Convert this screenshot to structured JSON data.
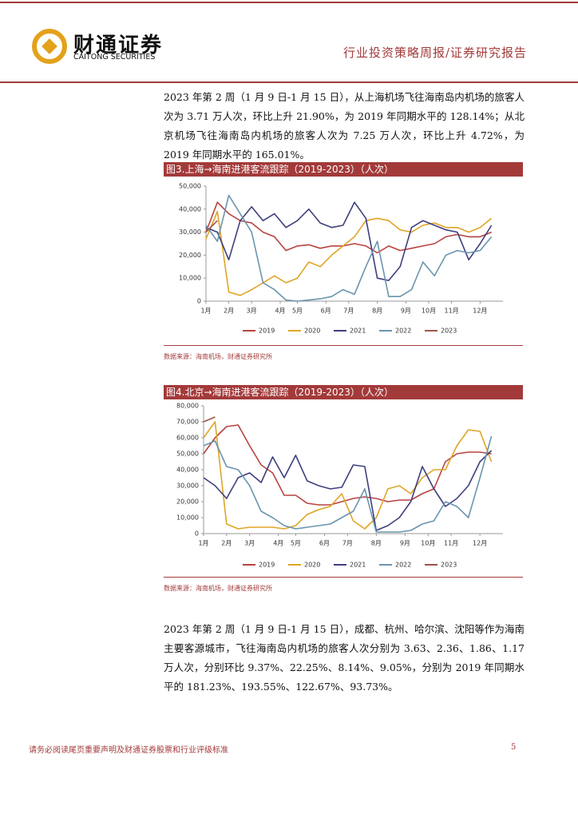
{
  "header": {
    "brand": "财通证券",
    "brand_en": "CAITONG SECURITIES",
    "report_type": "行业投资策略周报/证券研究报告"
  },
  "paragraphs": [
    "2023 年第 2 周（1 月 9 日-1 月 15 日），从上海机场飞往海南岛内机场的旅客人次为 3.71 万人次，环比上升 21.90%，为 2019 年同期水平的 128.14%；从北京机场飞往海南岛内机场的旅客人次为 7.25 万人次，环比上升 4.72%，为 2019 年同期水平的 165.01%。",
    "2023 年第 2 周（1 月 9 日-1 月 15 日），成都、杭州、哈尔滨、沈阳等作为海南主要客源城市，飞往海南岛内机场的旅客人次分别为 3.63、2.36、1.86、1.17 万人次，分别环比 9.37%、22.25%、8.14%、9.05%，分别为 2019 年同期水平的 181.23%、193.55%、122.67%、93.73%。"
  ],
  "sources": [
    "数据来源：海南机场，财通证券研究所",
    "数据来源：海南机场，财通证券研究所"
  ],
  "footer": {
    "disclaimer": "请务必阅读尾页重要声明及财通证券股票和行业评级标准",
    "page": "5"
  },
  "chart_data": [
    {
      "type": "line",
      "title": "图3.上海→海南进港客流跟踪（2019-2023）（人次）",
      "x": [
        1,
        3,
        5,
        7,
        9,
        11,
        13,
        15,
        17,
        19,
        21,
        23,
        25,
        27,
        29,
        31,
        33,
        35,
        37,
        39,
        41,
        43,
        45,
        47,
        49,
        51
      ],
      "xlim": [
        1,
        53
      ],
      "xticks": [
        {
          "value": 1,
          "label": "1月"
        },
        {
          "value": 5,
          "label": "2月"
        },
        {
          "value": 9,
          "label": "3月"
        },
        {
          "value": 14,
          "label": "4月"
        },
        {
          "value": 17,
          "label": "5月"
        },
        {
          "value": 22,
          "label": "6月"
        },
        {
          "value": 26,
          "label": "7月"
        },
        {
          "value": 31,
          "label": "8月"
        },
        {
          "value": 36,
          "label": "9月"
        },
        {
          "value": 40,
          "label": "10月"
        },
        {
          "value": 44,
          "label": "11月"
        },
        {
          "value": 49,
          "label": "12月"
        }
      ],
      "ylim": [
        0,
        50000
      ],
      "yticks": [
        0,
        {
          "value": 10000,
          "label": "10,000"
        },
        {
          "value": 20000,
          "label": "20,000"
        },
        {
          "value": 30000,
          "label": "30,000"
        },
        {
          "value": 40000,
          "label": "40,000"
        },
        {
          "value": 50000,
          "label": "50,000"
        }
      ],
      "grid": false,
      "legend": "bottom",
      "series": [
        {
          "name": "2019",
          "color": "#b8433f",
          "values": [
            30000,
            43000,
            38000,
            35000,
            34000,
            30000,
            28000,
            22000,
            24000,
            24500,
            23000,
            24000,
            24000,
            25000,
            24000,
            21000,
            24000,
            22000,
            23000,
            24000,
            25000,
            28000,
            29000,
            28000,
            28000,
            30000
          ]
        },
        {
          "name": "2020",
          "color": "#e0a526",
          "values": [
            27000,
            39000,
            4000,
            2500,
            5000,
            8000,
            11000,
            8000,
            10000,
            17000,
            15000,
            20000,
            24000,
            28000,
            35000,
            36000,
            35000,
            31000,
            30000,
            33000,
            34000,
            32000,
            32000,
            30000,
            32000,
            36000
          ]
        },
        {
          "name": "2021",
          "color": "#3d3f7c",
          "values": [
            32000,
            30000,
            18000,
            35000,
            41000,
            35000,
            38000,
            32000,
            35000,
            40000,
            34000,
            32000,
            33000,
            43000,
            36000,
            10000,
            9000,
            15000,
            32000,
            35000,
            33000,
            31000,
            30000,
            18000,
            25000,
            33000
          ]
        },
        {
          "name": "2022",
          "color": "#6a95ad",
          "values": [
            33000,
            26000,
            46000,
            38000,
            30000,
            8000,
            5000,
            500,
            0,
            500,
            1000,
            2000,
            5000,
            3000,
            15000,
            26000,
            2000,
            2000,
            5000,
            17000,
            11000,
            20000,
            22000,
            21000,
            22000,
            28000
          ]
        },
        {
          "name": "2023",
          "color": "#9c5546",
          "values": [
            30000,
            35000,
            null,
            null,
            null,
            null,
            null,
            null,
            null,
            null,
            null,
            null,
            null,
            null,
            null,
            null,
            null,
            null,
            null,
            null,
            null,
            null,
            null,
            null,
            null,
            null
          ]
        }
      ]
    },
    {
      "type": "line",
      "title": "图4.北京→海南进港客流跟踪（2019-2023）（人次）",
      "x": [
        1,
        3,
        5,
        7,
        9,
        11,
        13,
        15,
        17,
        19,
        21,
        23,
        25,
        27,
        29,
        31,
        33,
        35,
        37,
        39,
        41,
        43,
        45,
        47,
        49,
        51
      ],
      "xlim": [
        1,
        53
      ],
      "xticks": [
        {
          "value": 1,
          "label": "1月"
        },
        {
          "value": 5,
          "label": "2月"
        },
        {
          "value": 9,
          "label": "3月"
        },
        {
          "value": 14,
          "label": "4月"
        },
        {
          "value": 17,
          "label": "5月"
        },
        {
          "value": 22,
          "label": "6月"
        },
        {
          "value": 26,
          "label": "7月"
        },
        {
          "value": 31,
          "label": "8月"
        },
        {
          "value": 36,
          "label": "9月"
        },
        {
          "value": 40,
          "label": "10月"
        },
        {
          "value": 44,
          "label": "11月"
        },
        {
          "value": 49,
          "label": "12月"
        }
      ],
      "ylim": [
        0,
        80000
      ],
      "yticks": [
        0,
        {
          "value": 10000,
          "label": "10,000"
        },
        {
          "value": 20000,
          "label": "20,000"
        },
        {
          "value": 30000,
          "label": "30,000"
        },
        {
          "value": 40000,
          "label": "40,000"
        },
        {
          "value": 50000,
          "label": "50,000"
        },
        {
          "value": 60000,
          "label": "60,000"
        },
        {
          "value": 70000,
          "label": "70,000"
        },
        {
          "value": 80000,
          "label": "80,000"
        }
      ],
      "grid": false,
      "legend": "bottom",
      "series": [
        {
          "name": "2019",
          "color": "#b8433f",
          "values": [
            50000,
            60000,
            67000,
            68000,
            55000,
            43000,
            38000,
            24000,
            24000,
            19000,
            18000,
            18000,
            20000,
            22000,
            23000,
            22000,
            20000,
            21000,
            21000,
            25000,
            28000,
            45000,
            50000,
            51000,
            51000,
            50000
          ]
        },
        {
          "name": "2020",
          "color": "#e0a526",
          "values": [
            60000,
            70000,
            6000,
            3000,
            4000,
            4000,
            4000,
            3000,
            5000,
            12000,
            15000,
            17000,
            25000,
            8000,
            3000,
            10000,
            28000,
            30000,
            25000,
            35000,
            40000,
            40000,
            55000,
            65000,
            64000,
            45000
          ]
        },
        {
          "name": "2021",
          "color": "#3d3f7c",
          "values": [
            35000,
            30000,
            22000,
            35000,
            38000,
            32000,
            48000,
            35000,
            49000,
            33000,
            30000,
            28000,
            29000,
            43000,
            42000,
            2000,
            5000,
            10000,
            20000,
            42000,
            28000,
            17000,
            22000,
            30000,
            45000,
            52000
          ]
        },
        {
          "name": "2022",
          "color": "#6a95ad",
          "values": [
            55000,
            58000,
            42000,
            40000,
            30000,
            14000,
            10000,
            5000,
            3000,
            4000,
            5000,
            6000,
            10000,
            14000,
            28000,
            1000,
            1000,
            1000,
            2000,
            6000,
            8000,
            20000,
            17000,
            10000,
            35000,
            61000
          ]
        },
        {
          "name": "2023",
          "color": "#9c5546",
          "values": [
            70000,
            73000,
            null,
            null,
            null,
            null,
            null,
            null,
            null,
            null,
            null,
            null,
            null,
            null,
            null,
            null,
            null,
            null,
            null,
            null,
            null,
            null,
            null,
            null,
            null,
            null
          ]
        }
      ]
    }
  ]
}
